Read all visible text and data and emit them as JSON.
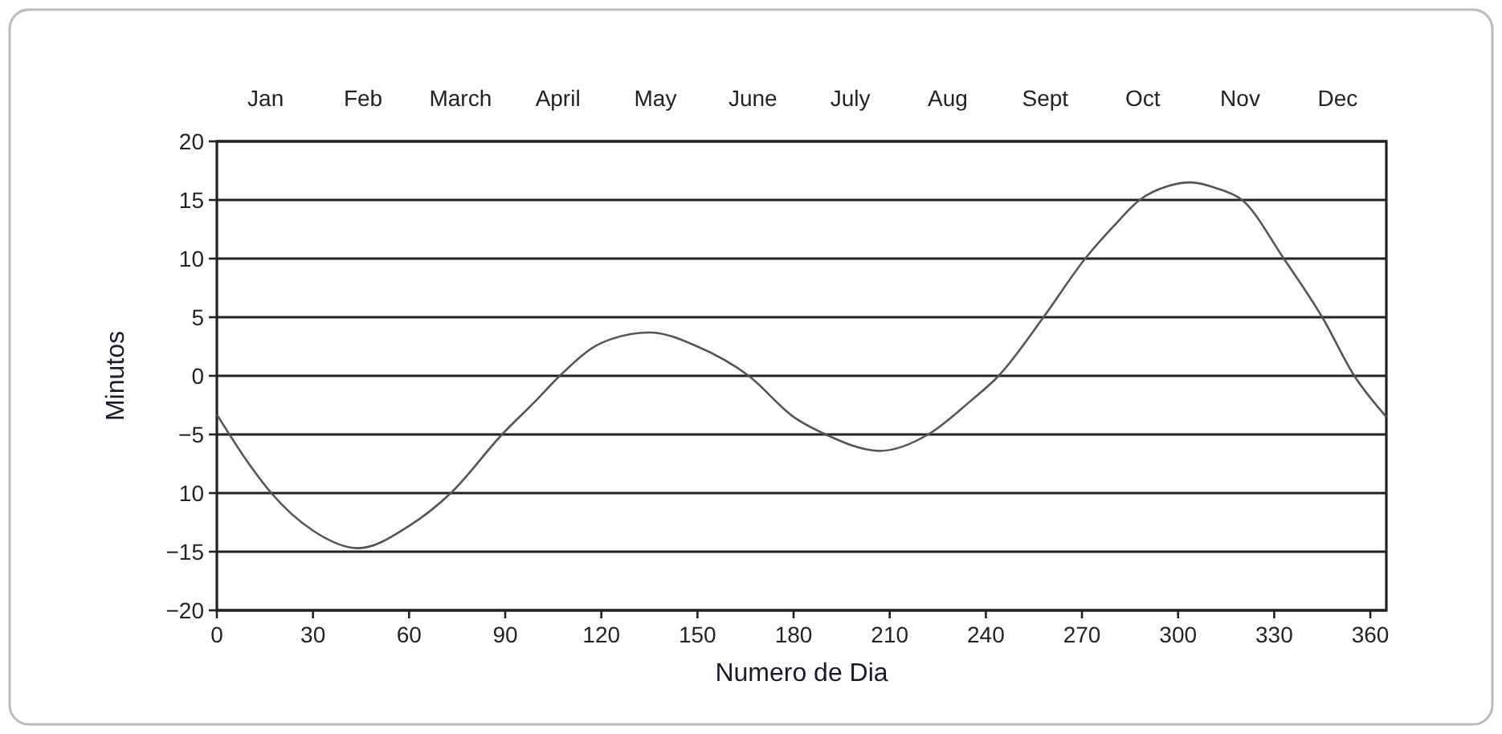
{
  "chart_data": {
    "type": "line",
    "xlabel": "Numero de Dia",
    "ylabel": "Minutos",
    "x": [
      0,
      10,
      17,
      30,
      44,
      60,
      73,
      89,
      100,
      107,
      120,
      135,
      150,
      166,
      180,
      190,
      207,
      222,
      235,
      244,
      258,
      271,
      280,
      288,
      297,
      304,
      312,
      320,
      333,
      345,
      355,
      365
    ],
    "series": [
      {
        "color": "#555555",
        "values": [
          -3.3,
          -7.5,
          -10,
          -13.2,
          -14.7,
          -12.8,
          -10,
          -5,
          -2,
          0,
          2.8,
          3.7,
          2.5,
          0,
          -3.5,
          -5,
          -6.4,
          -5,
          -2.2,
          0,
          5,
          10,
          12.8,
          15,
          16.2,
          16.5,
          16,
          15,
          10,
          5,
          0,
          -3.5
        ]
      }
    ],
    "xlim": [
      0,
      365
    ],
    "xticks": [
      0,
      30,
      60,
      90,
      120,
      150,
      180,
      210,
      240,
      270,
      300,
      330,
      360
    ],
    "ylim": [
      -20,
      20
    ],
    "yticks": [
      {
        "value": -20,
        "label": "−20"
      },
      {
        "value": -15,
        "label": "−15"
      },
      {
        "value": -10,
        "label": "10"
      },
      {
        "value": -5,
        "label": "−5"
      },
      0,
      5,
      10,
      15,
      20
    ],
    "annotations": [
      "Jan",
      "Feb",
      "March",
      "April",
      "May",
      "June",
      "July",
      "Aug",
      "Sept",
      "Oct",
      "Nov",
      "Dec"
    ],
    "grid": "y",
    "marker": "none",
    "line_style": "solid"
  }
}
